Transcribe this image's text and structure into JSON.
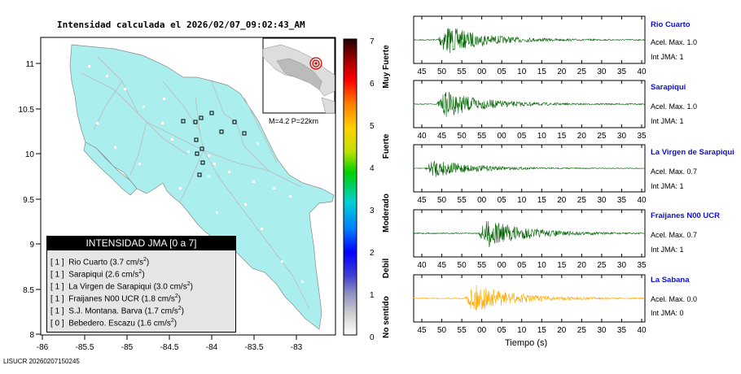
{
  "map": {
    "title": "Intensidad calculada el 2026/02/07_09:02:43_AM",
    "inset_label": "M=4.2 P=22km",
    "x_ticks": [
      "-86",
      "-85.5",
      "-85",
      "-84.5",
      "-84",
      "-83.5",
      "-83"
    ],
    "y_ticks": [
      "11",
      "10.5",
      "10",
      "9.5",
      "9",
      "8.5",
      "8"
    ],
    "footer": "LISUCR 20260207150245",
    "colors": {
      "land": "#aaeeee",
      "sea": "#ffffff"
    }
  },
  "colorbar": {
    "ticks": [
      "7",
      "6",
      "5",
      "4",
      "3",
      "2",
      "1",
      "0"
    ],
    "labels": [
      "Muy Fuerte",
      "Fuerte",
      "Moderado",
      "Debil",
      "No sentido"
    ]
  },
  "legend": {
    "title": "INTENSIDAD JMA [0 a 7]",
    "rows": [
      {
        "level": "[ 1 ]",
        "text": "Rio Cuarto (3.7 cm/s",
        "sup": "2",
        "end": ")"
      },
      {
        "level": "[ 1 ]",
        "text": "Sarapiqui (2.6 cm/s",
        "sup": "2",
        "end": ")"
      },
      {
        "level": "[ 1 ]",
        "text": "La Virgen de Sarapiqui (3.0 cm/s",
        "sup": "2",
        "end": ")"
      },
      {
        "level": "[ 1 ]",
        "text": "Fraijanes N00 UCR (1.8 cm/s",
        "sup": "2",
        "end": ")"
      },
      {
        "level": "[ 1 ]",
        "text": "S.J. Montana. Barva (1.7 cm/s",
        "sup": "2",
        "end": ")"
      },
      {
        "level": "[ 0 ]",
        "text": "Bebedero. Escazu (1.6 cm/s",
        "sup": "2",
        "end": ")"
      }
    ]
  },
  "seismograms": {
    "xlabel": "Tiempo (s)",
    "stations": [
      {
        "name": "Rio Cuarto",
        "acel": "Acel. Max. 1.0",
        "int": "Int JMA: 1",
        "color": "#006400",
        "ticks": [
          "45",
          "50",
          "55",
          "00",
          "05",
          "10",
          "15",
          "20",
          "25",
          "30",
          "35",
          "40"
        ]
      },
      {
        "name": "Sarapiqui",
        "acel": "Acel. Max. 1.0",
        "int": "Int JMA: 1",
        "color": "#006400",
        "ticks": [
          "40",
          "45",
          "50",
          "55",
          "00",
          "05",
          "10",
          "15",
          "20",
          "25",
          "30",
          "35"
        ]
      },
      {
        "name": "La Virgen de Sarapiqui",
        "acel": "Acel. Max. 0.7",
        "int": "Int JMA: 1",
        "color": "#006400",
        "ticks": [
          "45",
          "50",
          "55",
          "00",
          "05",
          "10",
          "15",
          "20",
          "25",
          "30",
          "35",
          "40"
        ]
      },
      {
        "name": "Fraijanes N00 UCR",
        "acel": "Acel. Max. 0.7",
        "int": "Int JMA: 1",
        "color": "#006400",
        "ticks": [
          "40",
          "45",
          "50",
          "55",
          "00",
          "05",
          "10",
          "15",
          "20",
          "25",
          "30",
          "35"
        ]
      },
      {
        "name": "La Sabana",
        "acel": "Acel. Max. 0.0",
        "int": "Int JMA: 0",
        "color": "#ffaa00",
        "ticks": [
          "45",
          "50",
          "55",
          "00",
          "05",
          "10",
          "15",
          "20",
          "25",
          "30",
          "35",
          "40"
        ]
      }
    ]
  }
}
